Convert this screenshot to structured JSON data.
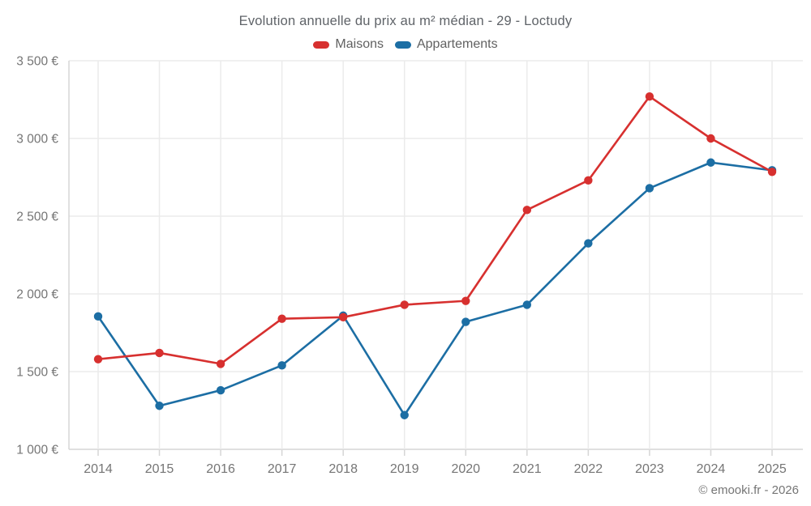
{
  "header": {
    "title": "Evolution annuelle du prix au m² médian - 29 - Loctudy"
  },
  "footer": {
    "credit": "© emooki.fr - 2026"
  },
  "colors": {
    "maisons": "#d7302f",
    "appartements": "#1c6ea4",
    "grid": "#ebebeb",
    "axis": "#d6d6d6",
    "tick_text": "#757575",
    "title_text": "#5f6368"
  },
  "chart_data": {
    "type": "line",
    "title": "Evolution annuelle du prix au m² médian - 29 - Loctudy",
    "categories": [
      "2014",
      "2015",
      "2016",
      "2017",
      "2018",
      "2019",
      "2020",
      "2021",
      "2022",
      "2023",
      "2024",
      "2025"
    ],
    "series": [
      {
        "name": "Maisons",
        "color": "#d7302f",
        "values": [
          1580,
          1620,
          1550,
          1840,
          1850,
          1930,
          1955,
          2540,
          2730,
          3270,
          3000,
          2785
        ]
      },
      {
        "name": "Appartements",
        "color": "#1c6ea4",
        "values": [
          1855,
          1280,
          1380,
          1540,
          1860,
          1220,
          1820,
          1930,
          2325,
          2680,
          2845,
          2795
        ]
      }
    ],
    "xlabel": "",
    "ylabel": "",
    "ylim": [
      1000,
      3500
    ],
    "ytick_step": 500,
    "ytick_labels": [
      "1 000 €",
      "1 500 €",
      "2 000 €",
      "2 500 €",
      "3 000 €",
      "3 500 €"
    ],
    "grid": true,
    "legend_position": "top"
  }
}
